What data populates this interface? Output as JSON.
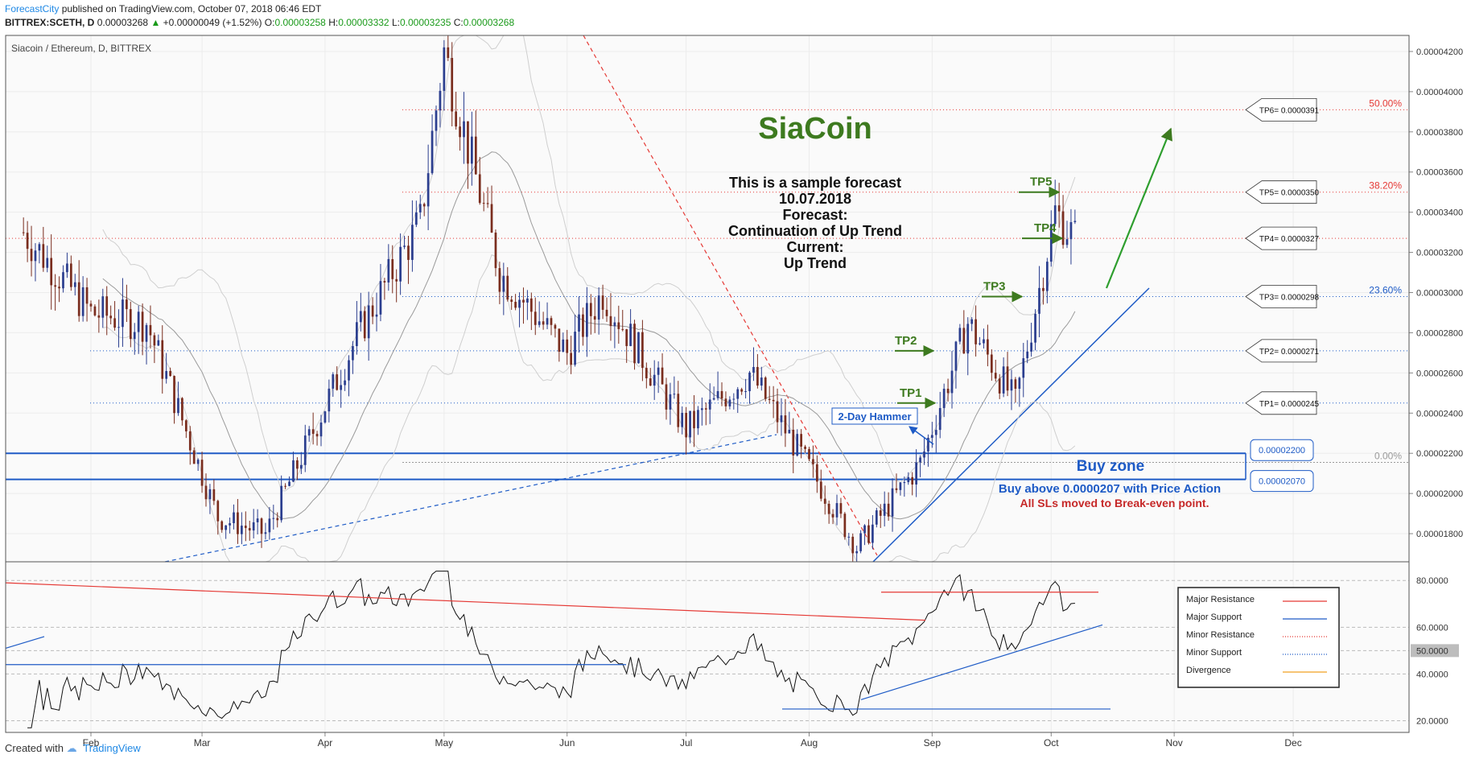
{
  "header": {
    "publisher": "ForecastCity",
    "published_text": " published on TradingView.com, October 07, 2018 06:46 EDT",
    "symbol": "BITTREX:SCETH, D",
    "last": "0.00003268",
    "change": "+0.00000049 (+1.52%)",
    "o_label": "O:",
    "o_value": "0.00003258",
    "h_label": "H:",
    "h_value": "0.00003332",
    "l_label": "L:",
    "l_value": "0.00003235",
    "c_label": "C:",
    "c_value": "0.00003268"
  },
  "footer": {
    "created_with": "Created with",
    "brand": "TradingView"
  },
  "colors": {
    "candle_up": "#2b3e8f",
    "candle_down": "#7a2d1e",
    "resistance": "#e53935",
    "support": "#1e5bc6",
    "tp_green": "#3d7a1f",
    "fib_red": "#e53935",
    "fib_blue": "#1e5bc6"
  },
  "chart_data": {
    "type": "candlestick",
    "title": "Siacoin / Ethereum, D, BITTREX",
    "x_ticks": [
      "Feb",
      "Mar",
      "Apr",
      "May",
      "Jun",
      "Jul",
      "Aug",
      "Sep",
      "Oct",
      "Nov",
      "Dec"
    ],
    "y_ticks": [
      "0.00004200",
      "0.00004000",
      "0.00003800",
      "0.00003600",
      "0.00003400",
      "0.00003200",
      "0.00003000",
      "0.00002800",
      "0.00002600",
      "0.00002400",
      "0.00002200",
      "0.00002000",
      "0.00001800"
    ],
    "ylim": [
      1.66e-05,
      4.28e-05
    ],
    "price_series_approx": [
      {
        "date": "Jan 15",
        "close": 3.3e-05
      },
      {
        "date": "Feb 1",
        "close": 2.9e-05
      },
      {
        "date": "Feb 15",
        "close": 2.85e-05
      },
      {
        "date": "Mar 5",
        "close": 1.88e-05
      },
      {
        "date": "Mar 17",
        "close": 1.8e-05
      },
      {
        "date": "Apr 10",
        "close": 2.82e-05
      },
      {
        "date": "Apr 25",
        "close": 3.35e-05
      },
      {
        "date": "May 1",
        "close": 4.2e-05
      },
      {
        "date": "May 15",
        "close": 3.1e-05
      },
      {
        "date": "Jun 1",
        "close": 2.7e-05
      },
      {
        "date": "Jun 10",
        "close": 3e-05
      },
      {
        "date": "Jul 1",
        "close": 2.32e-05
      },
      {
        "date": "Jul 17",
        "close": 2.6e-05
      },
      {
        "date": "Aug 5",
        "close": 2e-05
      },
      {
        "date": "Aug 13",
        "close": 1.73e-05
      },
      {
        "date": "Aug 29",
        "close": 2.15e-05
      },
      {
        "date": "Sep 10",
        "close": 2.85e-05
      },
      {
        "date": "Sep 22",
        "close": 2.45e-05
      },
      {
        "date": "Oct 2",
        "close": 3.4e-05
      },
      {
        "date": "Oct 7",
        "close": 3.27e-05
      }
    ],
    "title_annotation": "SiaCoin",
    "forecast_text": [
      "This is a sample forecast",
      "10.07.2018",
      "Forecast:",
      "Continuation of Up Trend",
      "Current:",
      "Up Trend"
    ],
    "targets": [
      {
        "tp": "TP1",
        "box": "TP1= 0.0000245",
        "value": 2.45e-05
      },
      {
        "tp": "TP2",
        "box": "TP2= 0.0000271",
        "value": 2.71e-05
      },
      {
        "tp": "TP3",
        "box": "TP3= 0.0000298",
        "value": 2.98e-05
      },
      {
        "tp": "TP4",
        "box": "TP4= 0.0000327",
        "value": 3.27e-05
      },
      {
        "tp": "TP5",
        "box": "TP5= 0.0000350",
        "value": 3.5e-05
      },
      {
        "tp": "",
        "box": "TP6= 0.0000391",
        "value": 3.91e-05
      }
    ],
    "fib_levels": [
      {
        "label": "50.00%",
        "value": 3.91e-05,
        "color": "#e53935"
      },
      {
        "label": "38.20%",
        "value": 3.5e-05,
        "color": "#e53935"
      },
      {
        "label": "23.60%",
        "value": 2.98e-05,
        "color": "#1e5bc6"
      },
      {
        "label": "0.00%",
        "value": 2.155e-05,
        "color": "#999999"
      }
    ],
    "buy_zone": {
      "upper": "0.00002200",
      "lower": "0.00002070",
      "upper_value": 2.2e-05,
      "lower_value": 2.07e-05,
      "label": "Buy zone",
      "line1": "Buy above 0.0000207 with Price Action",
      "line2": "All SLs moved to Break-even point."
    },
    "pattern_label": "2-Day Hammer",
    "oscillator": {
      "y_ticks": [
        "80.0000",
        "60.0000",
        "50.0000",
        "40.0000",
        "20.0000"
      ],
      "ylim": [
        15,
        88
      ],
      "current": "50.0000"
    },
    "legend": [
      "Major Resistance",
      "Major Support",
      "Minor Resistance",
      "Minor Support",
      "Divergence"
    ]
  }
}
